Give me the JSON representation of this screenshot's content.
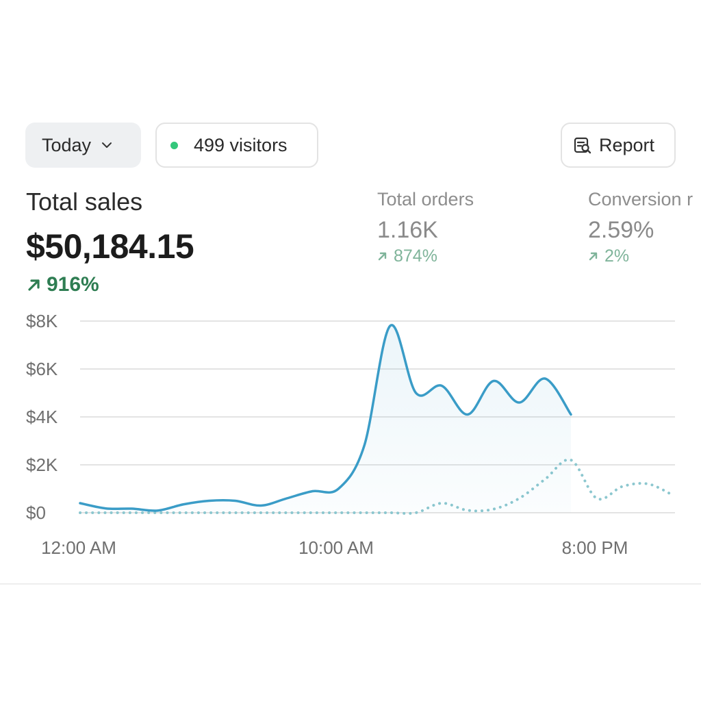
{
  "toolbar": {
    "range_label": "Today",
    "visitors_label": "499 visitors",
    "report_label": "Report"
  },
  "metrics": {
    "total_sales": {
      "label": "Total sales",
      "value": "$50,184.15",
      "delta": "916%"
    },
    "total_orders": {
      "label": "Total orders",
      "value": "1.16K",
      "delta": "874%"
    },
    "conversion": {
      "label": "Conversion r",
      "value": "2.59%",
      "delta": "2%"
    }
  },
  "colors": {
    "accent_line": "#3a9cc7",
    "positive_strong": "#2e7d52",
    "positive_muted": "#7fb49a",
    "visitor_dot": "#34c77b",
    "grid": "#e3e3e3"
  },
  "icons": [
    "chevron-down-icon",
    "report-icon",
    "arrow-up-right-icon"
  ],
  "chart_data": {
    "type": "line",
    "x_ticks": [
      "12:00 AM",
      "10:00 AM",
      "8:00 PM"
    ],
    "y_ticks": [
      "$8K",
      "$6K",
      "$4K",
      "$2K",
      "$0"
    ],
    "ylim": [
      0,
      8000
    ],
    "grid": true,
    "x_hours": [
      0,
      1,
      2,
      3,
      4,
      5,
      6,
      7,
      8,
      9,
      10,
      11,
      12,
      13,
      14,
      15,
      16,
      17,
      18,
      19,
      20,
      21,
      22,
      23
    ],
    "series": [
      {
        "style": "solid",
        "values": [
          400,
          180,
          170,
          90,
          350,
          500,
          500,
          300,
          600,
          900,
          1000,
          2800,
          7800,
          5000,
          5300,
          4100,
          5500,
          4600,
          5600,
          4100
        ]
      },
      {
        "style": "dotted",
        "values": [
          0,
          0,
          0,
          0,
          0,
          0,
          0,
          0,
          0,
          0,
          0,
          0,
          0,
          0,
          400,
          100,
          150,
          600,
          1400,
          2200,
          600,
          1100,
          1200,
          700
        ]
      }
    ]
  }
}
